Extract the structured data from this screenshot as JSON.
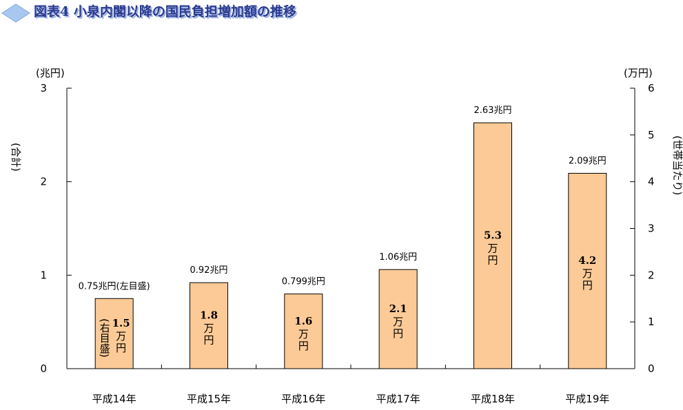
{
  "title": "図表4 小泉内閣以降の国民負担増加額の推移",
  "colors": {
    "bar": "#fcca96",
    "bar_stroke": "#000000",
    "title": "#2b3a8f",
    "title_shadow": "#9fb3e6",
    "badge": "#a9c8f0"
  },
  "icons": {
    "badge": "diamond-badge-icon"
  },
  "chart_data": {
    "type": "bar",
    "title": "図表4 小泉内閣以降の国民負担増加額の推移",
    "categories": [
      "平成14年",
      "平成15年",
      "平成16年",
      "平成17年",
      "平成18年",
      "平成19年"
    ],
    "series": [
      {
        "name": "合計",
        "values": [
          0.75,
          0.92,
          0.799,
          1.06,
          2.63,
          2.09
        ],
        "labels": [
          "0.75兆円(左目盛)",
          "0.92兆円",
          "0.799兆円",
          "1.06兆円",
          "2.63兆円",
          "2.09兆円"
        ]
      },
      {
        "name": "世帯当たり",
        "values": [
          1.5,
          1.8,
          1.6,
          2.1,
          5.3,
          4.2
        ],
        "labels": [
          "1.5",
          "1.8",
          "1.6",
          "2.1",
          "5.3",
          "4.2"
        ],
        "unit": "万円"
      }
    ],
    "first_bar_note": "(右目盛)",
    "left_axis": {
      "unit": "(兆円)",
      "label": "(合計)",
      "ylim": [
        0,
        3
      ],
      "ticks": [
        "0",
        "1",
        "2",
        "3"
      ]
    },
    "right_axis": {
      "unit": "(万円)",
      "label": "(世帯当たり)",
      "ylim": [
        0,
        6
      ],
      "ticks": [
        "0",
        "1",
        "2",
        "3",
        "4",
        "5",
        "6"
      ]
    },
    "grid": false,
    "legend": "none"
  }
}
